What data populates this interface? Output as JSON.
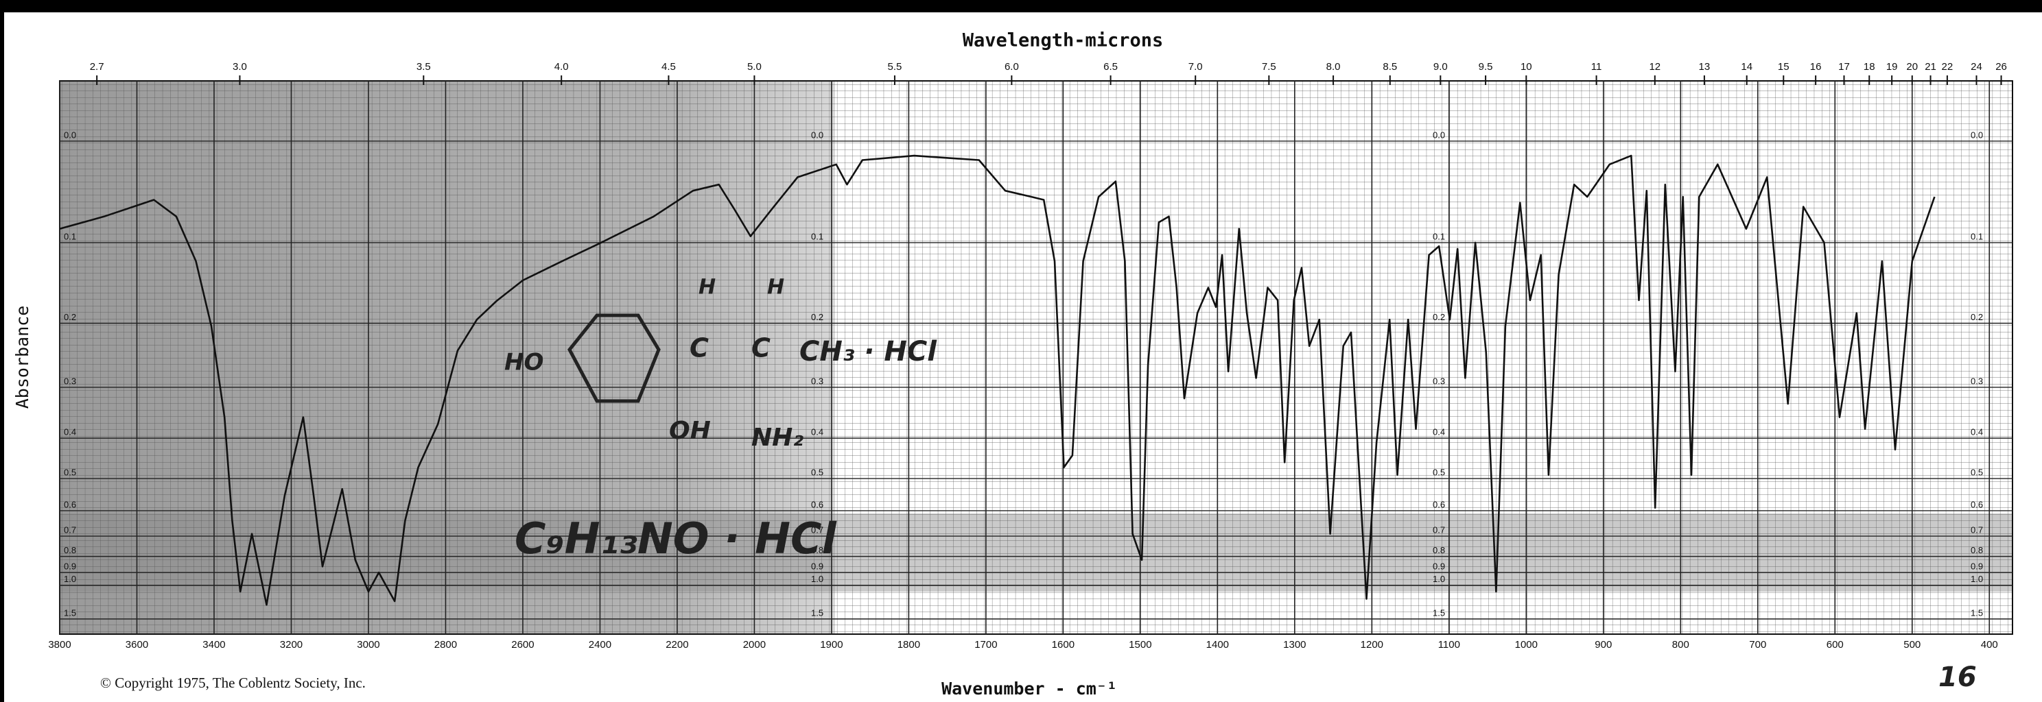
{
  "chart_data": {
    "type": "line",
    "title": "Wavelength-microns",
    "xlabel": "Wavenumber - cm⁻¹",
    "ylabel": "Absorbance",
    "copyright": "© Copyright 1975, The Coblentz Society, Inc.",
    "color": "#111111",
    "grid": true,
    "xlim": [
      3800,
      370
    ],
    "x_scale_break": 2000,
    "x_scale_factor": 2,
    "ylim": [
      -0.05,
      3
    ],
    "y_scale": "transmittance",
    "xticks": [
      3800,
      3600,
      3400,
      3200,
      3000,
      2800,
      2600,
      2400,
      2200,
      2000,
      1900,
      1800,
      1700,
      1600,
      1500,
      1400,
      1300,
      1200,
      1100,
      1000,
      900,
      800,
      700,
      600,
      500,
      400
    ],
    "yticks": [
      {
        "value": 0,
        "label": "0.0"
      },
      0.1,
      0.2,
      0.3,
      0.4,
      0.5,
      0.6,
      0.7,
      0.8,
      0.9,
      {
        "value": 1,
        "label": "1.0"
      },
      1.5
    ],
    "x2ticks": [
      2.7,
      {
        "value": 3,
        "label": "3.0"
      },
      3.5,
      {
        "value": 4,
        "label": "4.0"
      },
      4.5,
      {
        "value": 5,
        "label": "5.0"
      },
      5.5,
      {
        "value": 6,
        "label": "6.0"
      },
      6.5,
      {
        "value": 7,
        "label": "7.0"
      },
      7.5,
      {
        "value": 8,
        "label": "8.0"
      },
      8.5,
      {
        "value": 9,
        "label": "9.0"
      },
      9.5,
      10,
      11,
      12,
      13,
      14,
      15,
      16,
      17,
      18,
      19,
      20,
      21,
      22,
      24,
      26
    ],
    "x": [
      3800,
      3685,
      3556,
      3498,
      3447,
      3407,
      3373,
      3353,
      3332,
      3302,
      3264,
      3217,
      3169,
      3142,
      3119,
      3068,
      3034,
      3000,
      2973,
      2932,
      2905,
      2871,
      2820,
      2769,
      2719,
      2668,
      2600,
      2498,
      2397,
      2261,
      2159,
      2092,
      2051,
      2010,
      1978,
      1944,
      1894,
      1880,
      1860,
      1793,
      1709,
      1675,
      1641,
      1625,
      1611,
      1599,
      1588,
      1574,
      1554,
      1532,
      1520,
      1510,
      1498,
      1490,
      1476,
      1463,
      1453,
      1443,
      1426,
      1412,
      1402,
      1394,
      1386,
      1372,
      1362,
      1350,
      1335,
      1322,
      1313,
      1301,
      1291,
      1281,
      1268,
      1254,
      1237,
      1227,
      1207,
      1194,
      1177,
      1167,
      1153,
      1143,
      1126,
      1113,
      1099,
      1089,
      1079,
      1066,
      1052,
      1039,
      1027,
      1008,
      995,
      981,
      971,
      958,
      938,
      921,
      892,
      864,
      854,
      844,
      833,
      820,
      807,
      797,
      786,
      776,
      752,
      715,
      688,
      661,
      641,
      614,
      594,
      572,
      561,
      539,
      522,
      500,
      471
    ],
    "values": [
      0.085,
      0.072,
      0.055,
      0.072,
      0.121,
      0.204,
      0.356,
      0.636,
      1.06,
      0.69,
      1.22,
      0.55,
      0.356,
      0.55,
      0.86,
      0.53,
      0.82,
      1.06,
      0.9,
      1.17,
      0.636,
      0.47,
      0.37,
      0.24,
      0.195,
      0.17,
      0.144,
      0.121,
      0.1,
      0.072,
      0.046,
      0.04,
      0.065,
      0.093,
      0.065,
      0.033,
      0.021,
      0.04,
      0.017,
      0.013,
      0.017,
      0.046,
      0.052,
      0.055,
      0.121,
      0.47,
      0.44,
      0.121,
      0.052,
      0.037,
      0.121,
      0.69,
      0.82,
      0.263,
      0.078,
      0.072,
      0.153,
      0.32,
      0.186,
      0.153,
      0.178,
      0.114,
      0.273,
      0.085,
      0.186,
      0.284,
      0.153,
      0.169,
      0.457,
      0.169,
      0.129,
      0.233,
      0.195,
      0.69,
      0.233,
      0.213,
      1.14,
      0.41,
      0.195,
      0.49,
      0.195,
      0.38,
      0.114,
      0.104,
      0.195,
      0.107,
      0.284,
      0.1,
      0.243,
      1.06,
      0.204,
      0.058,
      0.169,
      0.114,
      0.49,
      0.137,
      0.04,
      0.052,
      0.021,
      0.013,
      0.169,
      0.046,
      0.59,
      0.04,
      0.273,
      0.052,
      0.49,
      0.052,
      0.021,
      0.085,
      0.033,
      0.33,
      0.062,
      0.1,
      0.356,
      0.186,
      0.38,
      0.121,
      0.426,
      0.121,
      0.052
    ],
    "annotations": [
      "HO",
      "H",
      "H",
      "C",
      "C",
      "CH₃ · HCl",
      "OH",
      "NH₂",
      "C₉H₁₃NO · HCl",
      "16"
    ]
  }
}
